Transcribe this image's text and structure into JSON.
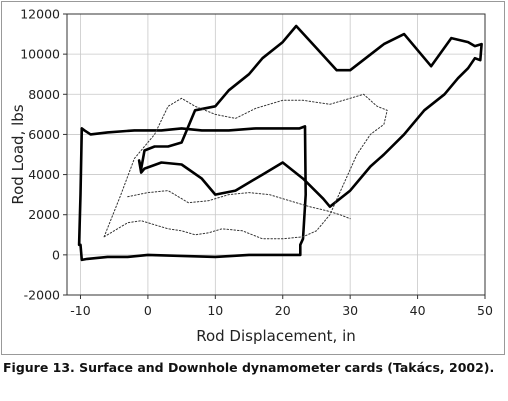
{
  "chart_data": {
    "type": "line",
    "title": "",
    "xlabel": "Rod Displacement, in",
    "ylabel": "Rod Load, lbs",
    "xlim": [
      -12,
      50
    ],
    "ylim": [
      -2000,
      12000
    ],
    "xticks": [
      -10,
      0,
      10,
      20,
      30,
      40,
      50
    ],
    "yticks": [
      -2000,
      0,
      2000,
      4000,
      6000,
      8000,
      10000,
      12000
    ],
    "grid": true,
    "series": [
      {
        "style": "solid-thick",
        "color": "#000000",
        "x": [
          -9.8,
          -9.4,
          -8.5,
          -6,
          -2,
          2,
          5,
          8,
          12,
          16,
          20,
          22.5,
          23.3,
          23.4,
          23.0,
          22.6,
          22.6,
          20,
          15,
          10,
          5,
          0,
          -3,
          -6,
          -9,
          -9.8,
          -10,
          -10.2,
          -10.0,
          -9.8
        ],
        "y": [
          6300,
          6200,
          6000,
          6100,
          6200,
          6200,
          6300,
          6200,
          6200,
          6300,
          6300,
          6300,
          6400,
          3000,
          800,
          500,
          0,
          0,
          0,
          -100,
          -50,
          0,
          -100,
          -100,
          -200,
          -250,
          500,
          500,
          3000,
          6300
        ]
      },
      {
        "style": "solid-thick",
        "color": "#000000",
        "x": [
          -1.3,
          -1.0,
          -0.5,
          2,
          5,
          8,
          10,
          13,
          17,
          20,
          23,
          26,
          27,
          30,
          33,
          35,
          38,
          41,
          44,
          46,
          47.5,
          48.5,
          49.3,
          49.5,
          48.5,
          47.5,
          45,
          42,
          38,
          35,
          30,
          28,
          25,
          22,
          20,
          17,
          15,
          12,
          10,
          7,
          5,
          3,
          1,
          -0.5,
          -1,
          -1.3
        ],
        "y": [
          4700,
          4100,
          4300,
          4600,
          4500,
          3800,
          3000,
          3200,
          4000,
          4600,
          3800,
          2800,
          2400,
          3200,
          4400,
          5000,
          6000,
          7200,
          8000,
          8800,
          9300,
          9800,
          9700,
          10500,
          10400,
          10600,
          10800,
          9400,
          11000,
          10500,
          9200,
          9200,
          10300,
          11400,
          10600,
          9800,
          9000,
          8200,
          7400,
          7200,
          5600,
          5400,
          5400,
          5200,
          4300,
          4700
        ]
      },
      {
        "style": "dotted-thin",
        "color": "#333333",
        "x": [
          -6.5,
          -4,
          -2,
          1,
          3,
          5,
          7,
          10,
          13,
          16,
          20,
          23,
          27,
          30,
          32,
          34,
          35.5,
          35,
          33,
          31,
          29,
          27,
          25,
          23,
          20,
          17,
          14,
          11,
          9,
          7,
          5,
          3,
          1,
          -1,
          -3,
          -5,
          -6.5
        ],
        "y": [
          900,
          3000,
          4800,
          6000,
          7400,
          7800,
          7400,
          7000,
          6800,
          7300,
          7700,
          7700,
          7500,
          7800,
          8000,
          7400,
          7200,
          6500,
          6000,
          5000,
          3500,
          2000,
          1200,
          900,
          800,
          800,
          1200,
          1300,
          1100,
          1000,
          1200,
          1300,
          1500,
          1700,
          1600,
          1200,
          900
        ]
      },
      {
        "style": "dotted-thin",
        "color": "#333333",
        "x": [
          -3,
          0,
          3,
          6,
          9,
          12,
          15,
          18,
          21,
          24,
          26.5,
          28.5,
          30
        ],
        "y": [
          2900,
          3100,
          3200,
          2600,
          2700,
          3000,
          3100,
          3000,
          2700,
          2400,
          2200,
          2000,
          1800
        ]
      }
    ]
  },
  "caption": "Figure 13. Surface and Downhole dynamometer cards (Takács, 2002)."
}
